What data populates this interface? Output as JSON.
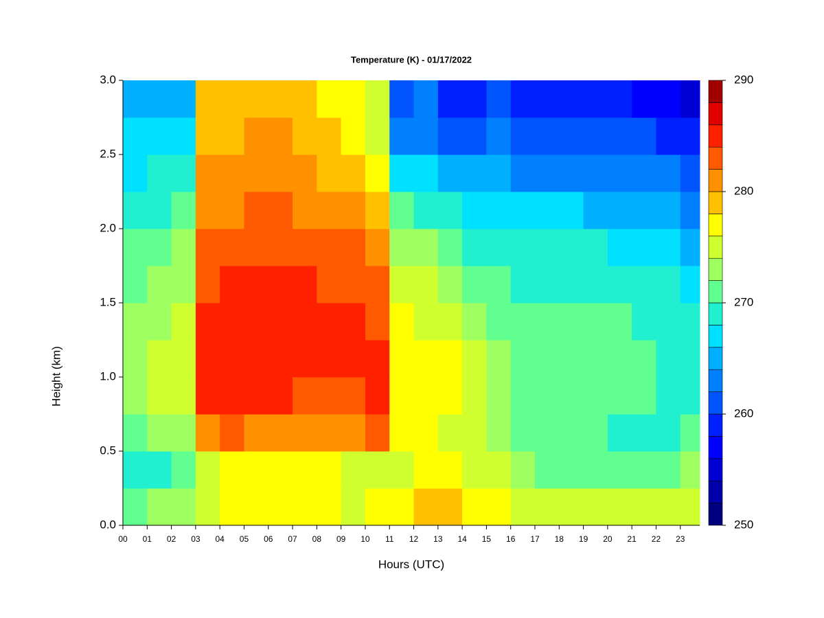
{
  "chart_data": {
    "type": "heatmap",
    "title": "Temperature (K) - 01/17/2022",
    "x_label": "Hours (UTC)",
    "y_label": "Height (km)",
    "x": [
      0,
      1,
      2,
      3,
      4,
      5,
      6,
      7,
      8,
      9,
      10,
      11,
      12,
      13,
      14,
      15,
      16,
      17,
      18,
      19,
      20,
      21,
      22,
      23
    ],
    "y": [
      0,
      0.25,
      0.5,
      0.75,
      1,
      1.25,
      1.5,
      1.75,
      2,
      2.25,
      2.5,
      2.75
    ],
    "z": [
      [
        271,
        268,
        270,
        272,
        272,
        272,
        271,
        270,
        268,
        267,
        266,
        265
      ],
      [
        272,
        269,
        272,
        274,
        274,
        273,
        272,
        270,
        269,
        268,
        266,
        265
      ],
      [
        273,
        271,
        273,
        275,
        275,
        274,
        273,
        272,
        270,
        268,
        266,
        265
      ],
      [
        275,
        275,
        281,
        284,
        284,
        284,
        283,
        282,
        281,
        280,
        279,
        278
      ],
      [
        276,
        276,
        282,
        284,
        285,
        285,
        284,
        283,
        281,
        280,
        279,
        278
      ],
      [
        276,
        276,
        281,
        284,
        285,
        285,
        284,
        283,
        282,
        281,
        280,
        279
      ],
      [
        276,
        276,
        281,
        284,
        285,
        285,
        285,
        283,
        282,
        281,
        280,
        279
      ],
      [
        276,
        276,
        280,
        283,
        284,
        285,
        284,
        283,
        281,
        280,
        279,
        278
      ],
      [
        276,
        276,
        280,
        283,
        284,
        284,
        283,
        282,
        281,
        279,
        278,
        277
      ],
      [
        275,
        275,
        280,
        283,
        284,
        284,
        283,
        282,
        280,
        279,
        277,
        276
      ],
      [
        276,
        275,
        283,
        285,
        284,
        283,
        282,
        280,
        278,
        276,
        275,
        274
      ],
      [
        277,
        275,
        276,
        277,
        277,
        276,
        275,
        273,
        270,
        266,
        262,
        260
      ],
      [
        278,
        276,
        277,
        277,
        276,
        275,
        274,
        272,
        269,
        266,
        263,
        262
      ],
      [
        278,
        276,
        275,
        276,
        276,
        275,
        273,
        271,
        268,
        264,
        260,
        258
      ],
      [
        277,
        275,
        274,
        274,
        274,
        273,
        271,
        269,
        267,
        264,
        261,
        259
      ],
      [
        276,
        274,
        272,
        272,
        272,
        271,
        270,
        268,
        266,
        264,
        262,
        260
      ],
      [
        275,
        272,
        270,
        271,
        271,
        270,
        269,
        268,
        266,
        263,
        261,
        259
      ],
      [
        274,
        271,
        270,
        270,
        270,
        270,
        269,
        268,
        266,
        263,
        260,
        258
      ],
      [
        274,
        270,
        270,
        270,
        270,
        270,
        269,
        268,
        266,
        263,
        260,
        258
      ],
      [
        274,
        270,
        270,
        270,
        270,
        270,
        269,
        268,
        265,
        263,
        260,
        258
      ],
      [
        274,
        270,
        269,
        270,
        270,
        270,
        269,
        267,
        265,
        263,
        260,
        258
      ],
      [
        274,
        270,
        269,
        270,
        270,
        269,
        268,
        267,
        265,
        262,
        260,
        257
      ],
      [
        274,
        271,
        269,
        269,
        269,
        269,
        268,
        266,
        264,
        262,
        259,
        256
      ],
      [
        275,
        272,
        270,
        269,
        269,
        268,
        267,
        265,
        263,
        261,
        258,
        255
      ]
    ],
    "xlim": [
      0,
      23.8
    ],
    "ylim": [
      0,
      3
    ],
    "xticks": [
      {
        "value": 0,
        "label": "00"
      },
      {
        "value": 1,
        "label": "01"
      },
      {
        "value": 2,
        "label": "02"
      },
      {
        "value": 3,
        "label": "03"
      },
      {
        "value": 4,
        "label": "04"
      },
      {
        "value": 5,
        "label": "05"
      },
      {
        "value": 6,
        "label": "06"
      },
      {
        "value": 7,
        "label": "07"
      },
      {
        "value": 8,
        "label": "08"
      },
      {
        "value": 9,
        "label": "09"
      },
      {
        "value": 10,
        "label": "10"
      },
      {
        "value": 11,
        "label": "11"
      },
      {
        "value": 12,
        "label": "12"
      },
      {
        "value": 13,
        "label": "13"
      },
      {
        "value": 14,
        "label": "14"
      },
      {
        "value": 15,
        "label": "15"
      },
      {
        "value": 16,
        "label": "16"
      },
      {
        "value": 17,
        "label": "17"
      },
      {
        "value": 18,
        "label": "18"
      },
      {
        "value": 19,
        "label": "19"
      },
      {
        "value": 20,
        "label": "20"
      },
      {
        "value": 21,
        "label": "21"
      },
      {
        "value": 22,
        "label": "22"
      },
      {
        "value": 23,
        "label": "23"
      }
    ],
    "yticks": [
      {
        "value": 0,
        "label": "0.0"
      },
      0.5,
      {
        "value": 1,
        "label": "1.0"
      },
      1.5,
      {
        "value": 2,
        "label": "2.0"
      },
      2.5,
      {
        "value": 3,
        "label": "3.0"
      }
    ],
    "zlim": [
      250,
      290
    ],
    "zticks": [
      250,
      260,
      270,
      280,
      290
    ],
    "colors": [
      "#00007f",
      "#0000a8",
      "#0000d4",
      "#0000ff",
      "#0020ff",
      "#0055ff",
      "#0080ff",
      "#00b0ff",
      "#00e0ff",
      "#20f0d0",
      "#60ff90",
      "#a0ff60",
      "#d0ff30",
      "#ffff00",
      "#ffc000",
      "#ff9000",
      "#ff5a00",
      "#ff2000",
      "#e00000",
      "#a00000"
    ]
  }
}
